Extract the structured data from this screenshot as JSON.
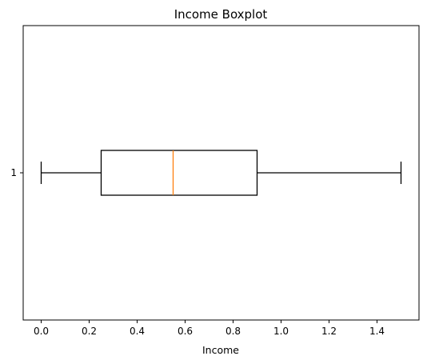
{
  "chart_data": {
    "type": "boxplot",
    "title": "Income Boxplot",
    "xlabel": "Income",
    "ylabel": "",
    "orientation": "horizontal",
    "xlim": [
      -0.075,
      1.575
    ],
    "x_ticks": [
      0.0,
      0.2,
      0.4,
      0.6,
      0.8,
      1.0,
      1.2,
      1.4
    ],
    "x_tick_labels": [
      "0.0",
      "0.2",
      "0.4",
      "0.6",
      "0.8",
      "1.0",
      "1.2",
      "1.4"
    ],
    "categories": [
      "1"
    ],
    "series": [
      {
        "stats": {
          "whisker_low": 0.0,
          "q1": 0.25,
          "median": 0.55,
          "q3": 0.9,
          "whisker_high": 1.5
        }
      }
    ],
    "grid": false,
    "colors": {
      "box": "#000000",
      "median": "#ff7f0e"
    }
  }
}
